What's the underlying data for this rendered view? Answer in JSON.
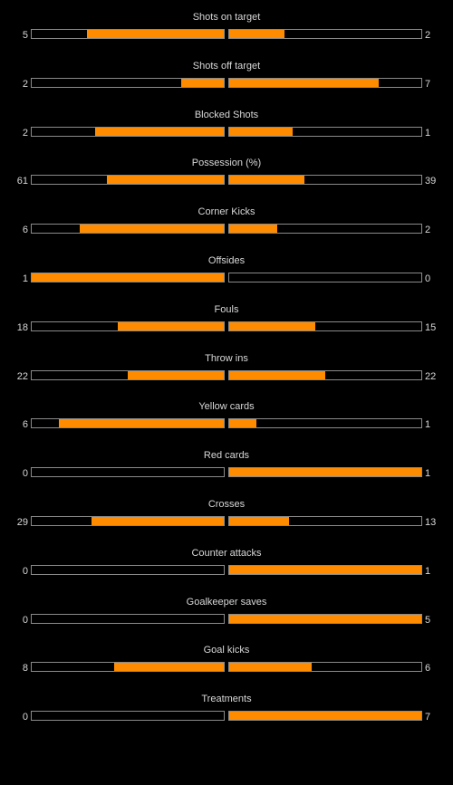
{
  "accent_color": "#ff8c00",
  "stats": [
    {
      "label": "Shots on target",
      "home": "5",
      "away": "2",
      "home_fill": 0.71,
      "away_fill": 0.29
    },
    {
      "label": "Shots off target",
      "home": "2",
      "away": "7",
      "home_fill": 0.22,
      "away_fill": 0.78
    },
    {
      "label": "Blocked Shots",
      "home": "2",
      "away": "1",
      "home_fill": 0.67,
      "away_fill": 0.33
    },
    {
      "label": "Possession (%)",
      "home": "61",
      "away": "39",
      "home_fill": 0.61,
      "away_fill": 0.39
    },
    {
      "label": "Corner Kicks",
      "home": "6",
      "away": "2",
      "home_fill": 0.75,
      "away_fill": 0.25
    },
    {
      "label": "Offsides",
      "home": "1",
      "away": "0",
      "home_fill": 1.0,
      "away_fill": 0.0
    },
    {
      "label": "Fouls",
      "home": "18",
      "away": "15",
      "home_fill": 0.55,
      "away_fill": 0.45
    },
    {
      "label": "Throw ins",
      "home": "22",
      "away": "22",
      "home_fill": 0.5,
      "away_fill": 0.5
    },
    {
      "label": "Yellow cards",
      "home": "6",
      "away": "1",
      "home_fill": 0.86,
      "away_fill": 0.14
    },
    {
      "label": "Red cards",
      "home": "0",
      "away": "1",
      "home_fill": 0.0,
      "away_fill": 1.0
    },
    {
      "label": "Crosses",
      "home": "29",
      "away": "13",
      "home_fill": 0.69,
      "away_fill": 0.31
    },
    {
      "label": "Counter attacks",
      "home": "0",
      "away": "1",
      "home_fill": 0.0,
      "away_fill": 1.0
    },
    {
      "label": "Goalkeeper saves",
      "home": "0",
      "away": "5",
      "home_fill": 0.0,
      "away_fill": 1.0
    },
    {
      "label": "Goal kicks",
      "home": "8",
      "away": "6",
      "home_fill": 0.57,
      "away_fill": 0.43
    },
    {
      "label": "Treatments",
      "home": "0",
      "away": "7",
      "home_fill": 0.0,
      "away_fill": 1.0
    }
  ]
}
